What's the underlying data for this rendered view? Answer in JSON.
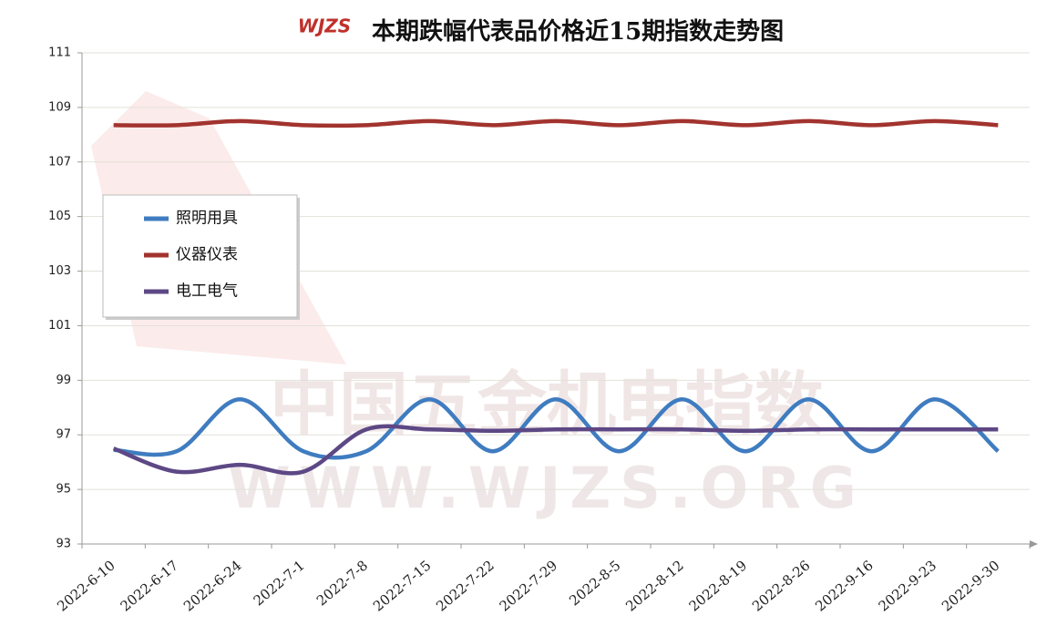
{
  "chart_data": {
    "type": "line",
    "title": "本期跌幅代表品价格近15期指数走势图",
    "logo": "WJZS",
    "watermark": [
      "中国五金机电指数",
      "WWW.WJZS.ORG"
    ],
    "categories": [
      "2022-6-10",
      "2022-6-17",
      "2022-6-24",
      "2022-7-1",
      "2022-7-8",
      "2022-7-15",
      "2022-7-22",
      "2022-7-29",
      "2022-8-5",
      "2022-8-12",
      "2022-8-19",
      "2022-8-26",
      "2022-9-16",
      "2022-9-23",
      "2022-9-30"
    ],
    "series": [
      {
        "name": "照明用具",
        "color": "#3f7cc0",
        "values": [
          96.45,
          96.4,
          98.3,
          96.4,
          96.4,
          98.3,
          96.4,
          98.3,
          96.4,
          98.3,
          96.4,
          98.3,
          96.4,
          98.3,
          96.4
        ]
      },
      {
        "name": "仪器仪表",
        "color": "#a2332e",
        "values": [
          108.35,
          108.35,
          108.5,
          108.35,
          108.35,
          108.5,
          108.35,
          108.5,
          108.35,
          108.5,
          108.35,
          108.5,
          108.35,
          108.5,
          108.35
        ]
      },
      {
        "name": "电工电气",
        "color": "#5d4885",
        "values": [
          96.5,
          95.65,
          95.9,
          95.65,
          97.2,
          97.2,
          97.15,
          97.2,
          97.2,
          97.2,
          97.15,
          97.2,
          97.2,
          97.2,
          97.2
        ]
      }
    ],
    "ylim": [
      93,
      111
    ],
    "yticks": [
      93,
      95,
      97,
      99,
      101,
      103,
      105,
      107,
      109,
      111
    ],
    "grid": true,
    "legend": "left",
    "smooth": true
  }
}
